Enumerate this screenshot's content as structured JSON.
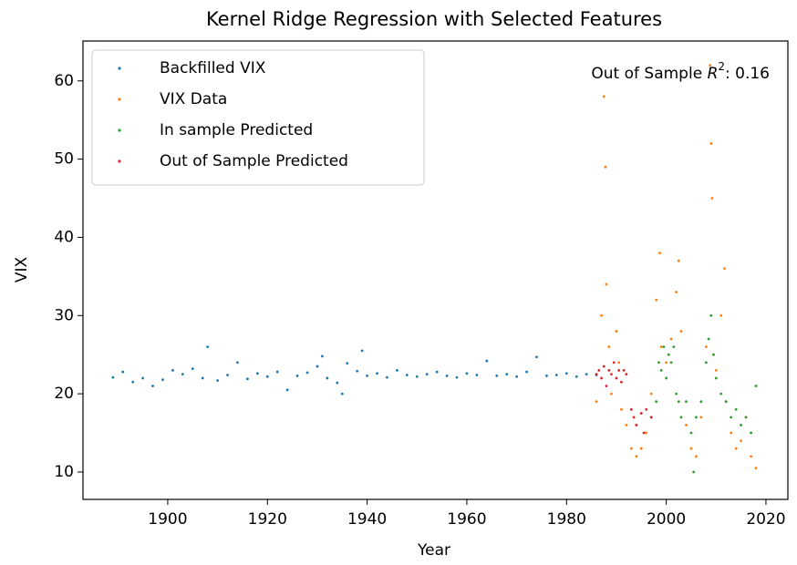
{
  "chart_data": {
    "type": "scatter",
    "title": "Kernel Ridge Regression with Selected Features",
    "x_label": "Year",
    "y_label": "VIX",
    "annotation": {
      "prefix": "Out of Sample ",
      "symbol": "R",
      "superscript": "2",
      "suffix": ":  0.16"
    },
    "xlim": [
      1883,
      2024.4
    ],
    "ylim": [
      6.5,
      65.1
    ],
    "xticks": [
      1900,
      1920,
      1940,
      1960,
      1980,
      2000,
      2020
    ],
    "yticks": [
      10,
      20,
      30,
      40,
      50,
      60
    ],
    "legend": "upper left",
    "series": [
      {
        "name": "Backfilled VIX",
        "color": "#1f77b4",
        "x": [
          1889,
          1891,
          1893,
          1895,
          1897,
          1899,
          1901,
          1903,
          1905,
          1907,
          1908,
          1910,
          1912,
          1914,
          1916,
          1918,
          1920,
          1922,
          1924,
          1926,
          1928,
          1930,
          1931,
          1932,
          1934,
          1935,
          1936,
          1938,
          1939,
          1940,
          1942,
          1944,
          1946,
          1948,
          1950,
          1952,
          1954,
          1956,
          1958,
          1960,
          1962,
          1964,
          1966,
          1968,
          1970,
          1972,
          1974,
          1976,
          1978,
          1980,
          1982,
          1984,
          1986
        ],
        "y": [
          22.1,
          22.8,
          21.5,
          22.0,
          21.0,
          21.8,
          23.0,
          22.5,
          23.2,
          22.0,
          26.0,
          21.7,
          22.4,
          24.0,
          21.9,
          22.6,
          22.2,
          22.8,
          20.5,
          22.3,
          22.7,
          23.5,
          24.8,
          22.0,
          21.4,
          20.0,
          23.9,
          22.9,
          25.5,
          22.3,
          22.6,
          22.1,
          23.0,
          22.4,
          22.2,
          22.5,
          22.8,
          22.3,
          22.1,
          22.6,
          22.4,
          24.2,
          22.3,
          22.5,
          22.2,
          22.8,
          24.7,
          22.3,
          22.4,
          22.6,
          22.2,
          22.5,
          22.4
        ]
      },
      {
        "name": "VIX Data",
        "color": "#ff7f0e",
        "x": [
          1986,
          1987,
          1987.5,
          1987.8,
          1988,
          1988.5,
          1989,
          1990,
          1990.5,
          1991,
          1992,
          1993,
          1994,
          1995,
          1996,
          1997,
          1998,
          1998.7,
          1999,
          2000,
          2001,
          2002,
          2002.5,
          2003,
          2004,
          2005,
          2006,
          2007,
          2008,
          2008.8,
          2009,
          2009.2,
          2010,
          2011,
          2011.7,
          2012,
          2013,
          2014,
          2015,
          2016,
          2017,
          2018
        ],
        "y": [
          19,
          30,
          58,
          49,
          34,
          26,
          20,
          28,
          24,
          18,
          16,
          13,
          12,
          13,
          15,
          20,
          32,
          38,
          26,
          24,
          27,
          33,
          37,
          28,
          16,
          13,
          12,
          17,
          26,
          62,
          52,
          45,
          23,
          30,
          36,
          19,
          15,
          13,
          14,
          17,
          12,
          10.5
        ]
      },
      {
        "name": "In sample Predicted",
        "color": "#2ca02c",
        "x": [
          1997,
          1998,
          1998.5,
          1999,
          1999.5,
          2000,
          2000.5,
          2001,
          2001.5,
          2002,
          2002.5,
          2003,
          2004,
          2005,
          2005.5,
          2006,
          2007,
          2008,
          2008.5,
          2009,
          2009.5,
          2010,
          2011,
          2012,
          2013,
          2014,
          2015,
          2016,
          2017,
          2018
        ],
        "y": [
          17,
          19,
          24,
          23,
          26,
          22,
          25,
          24,
          26,
          20,
          19,
          17,
          19,
          15,
          10,
          17,
          19,
          24,
          27,
          30,
          25,
          22,
          20,
          19,
          17,
          18,
          16,
          17,
          15,
          21
        ]
      },
      {
        "name": "Out of Sample Predicted",
        "color": "#d62728",
        "x": [
          1986,
          1986.5,
          1987,
          1987.5,
          1988,
          1988.5,
          1989,
          1989.5,
          1990,
          1990.5,
          1991,
          1991.5,
          1992,
          1993,
          1993.5,
          1994,
          1995,
          1995.5,
          1996,
          1997
        ],
        "y": [
          22.5,
          23,
          22,
          23.5,
          21,
          23,
          22.5,
          24,
          22,
          23,
          21.5,
          23,
          22.5,
          18,
          17,
          16,
          17.5,
          15,
          18,
          17
        ]
      }
    ]
  }
}
